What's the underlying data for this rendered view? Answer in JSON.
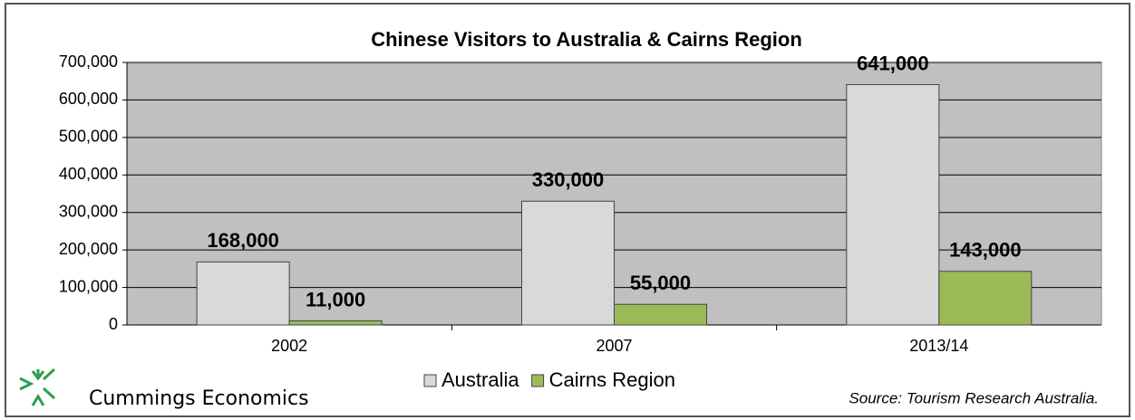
{
  "chart_data": {
    "type": "bar",
    "title": "Chinese Visitors to Australia & Cairns Region",
    "categories": [
      "2002",
      "2007",
      "2013/14"
    ],
    "series": [
      {
        "name": "Australia",
        "color": "#d9d9d9",
        "values": [
          168000,
          330000,
          641000
        ],
        "value_labels": [
          "168,000",
          "330,000",
          "641,000"
        ]
      },
      {
        "name": "Cairns Region",
        "color": "#9bbb59",
        "values": [
          11000,
          55000,
          143000
        ],
        "value_labels": [
          "11,000",
          "55,000",
          "143,000"
        ]
      }
    ],
    "ylim": [
      0,
      700000
    ],
    "yticks": [
      {
        "value": 0,
        "label": "0"
      },
      {
        "value": 100000,
        "label": "100,000"
      },
      {
        "value": 200000,
        "label": "200,000"
      },
      {
        "value": 300000,
        "label": "300,000"
      },
      {
        "value": 400000,
        "label": "400,000"
      },
      {
        "value": 500000,
        "label": "500,000"
      },
      {
        "value": 600000,
        "label": "600,000"
      },
      {
        "value": 700000,
        "label": "700,000"
      }
    ],
    "grid": true,
    "legend": "bottom",
    "source": "Source:  Tourism Research Australia.",
    "logo_text": "Cummings Economics"
  }
}
